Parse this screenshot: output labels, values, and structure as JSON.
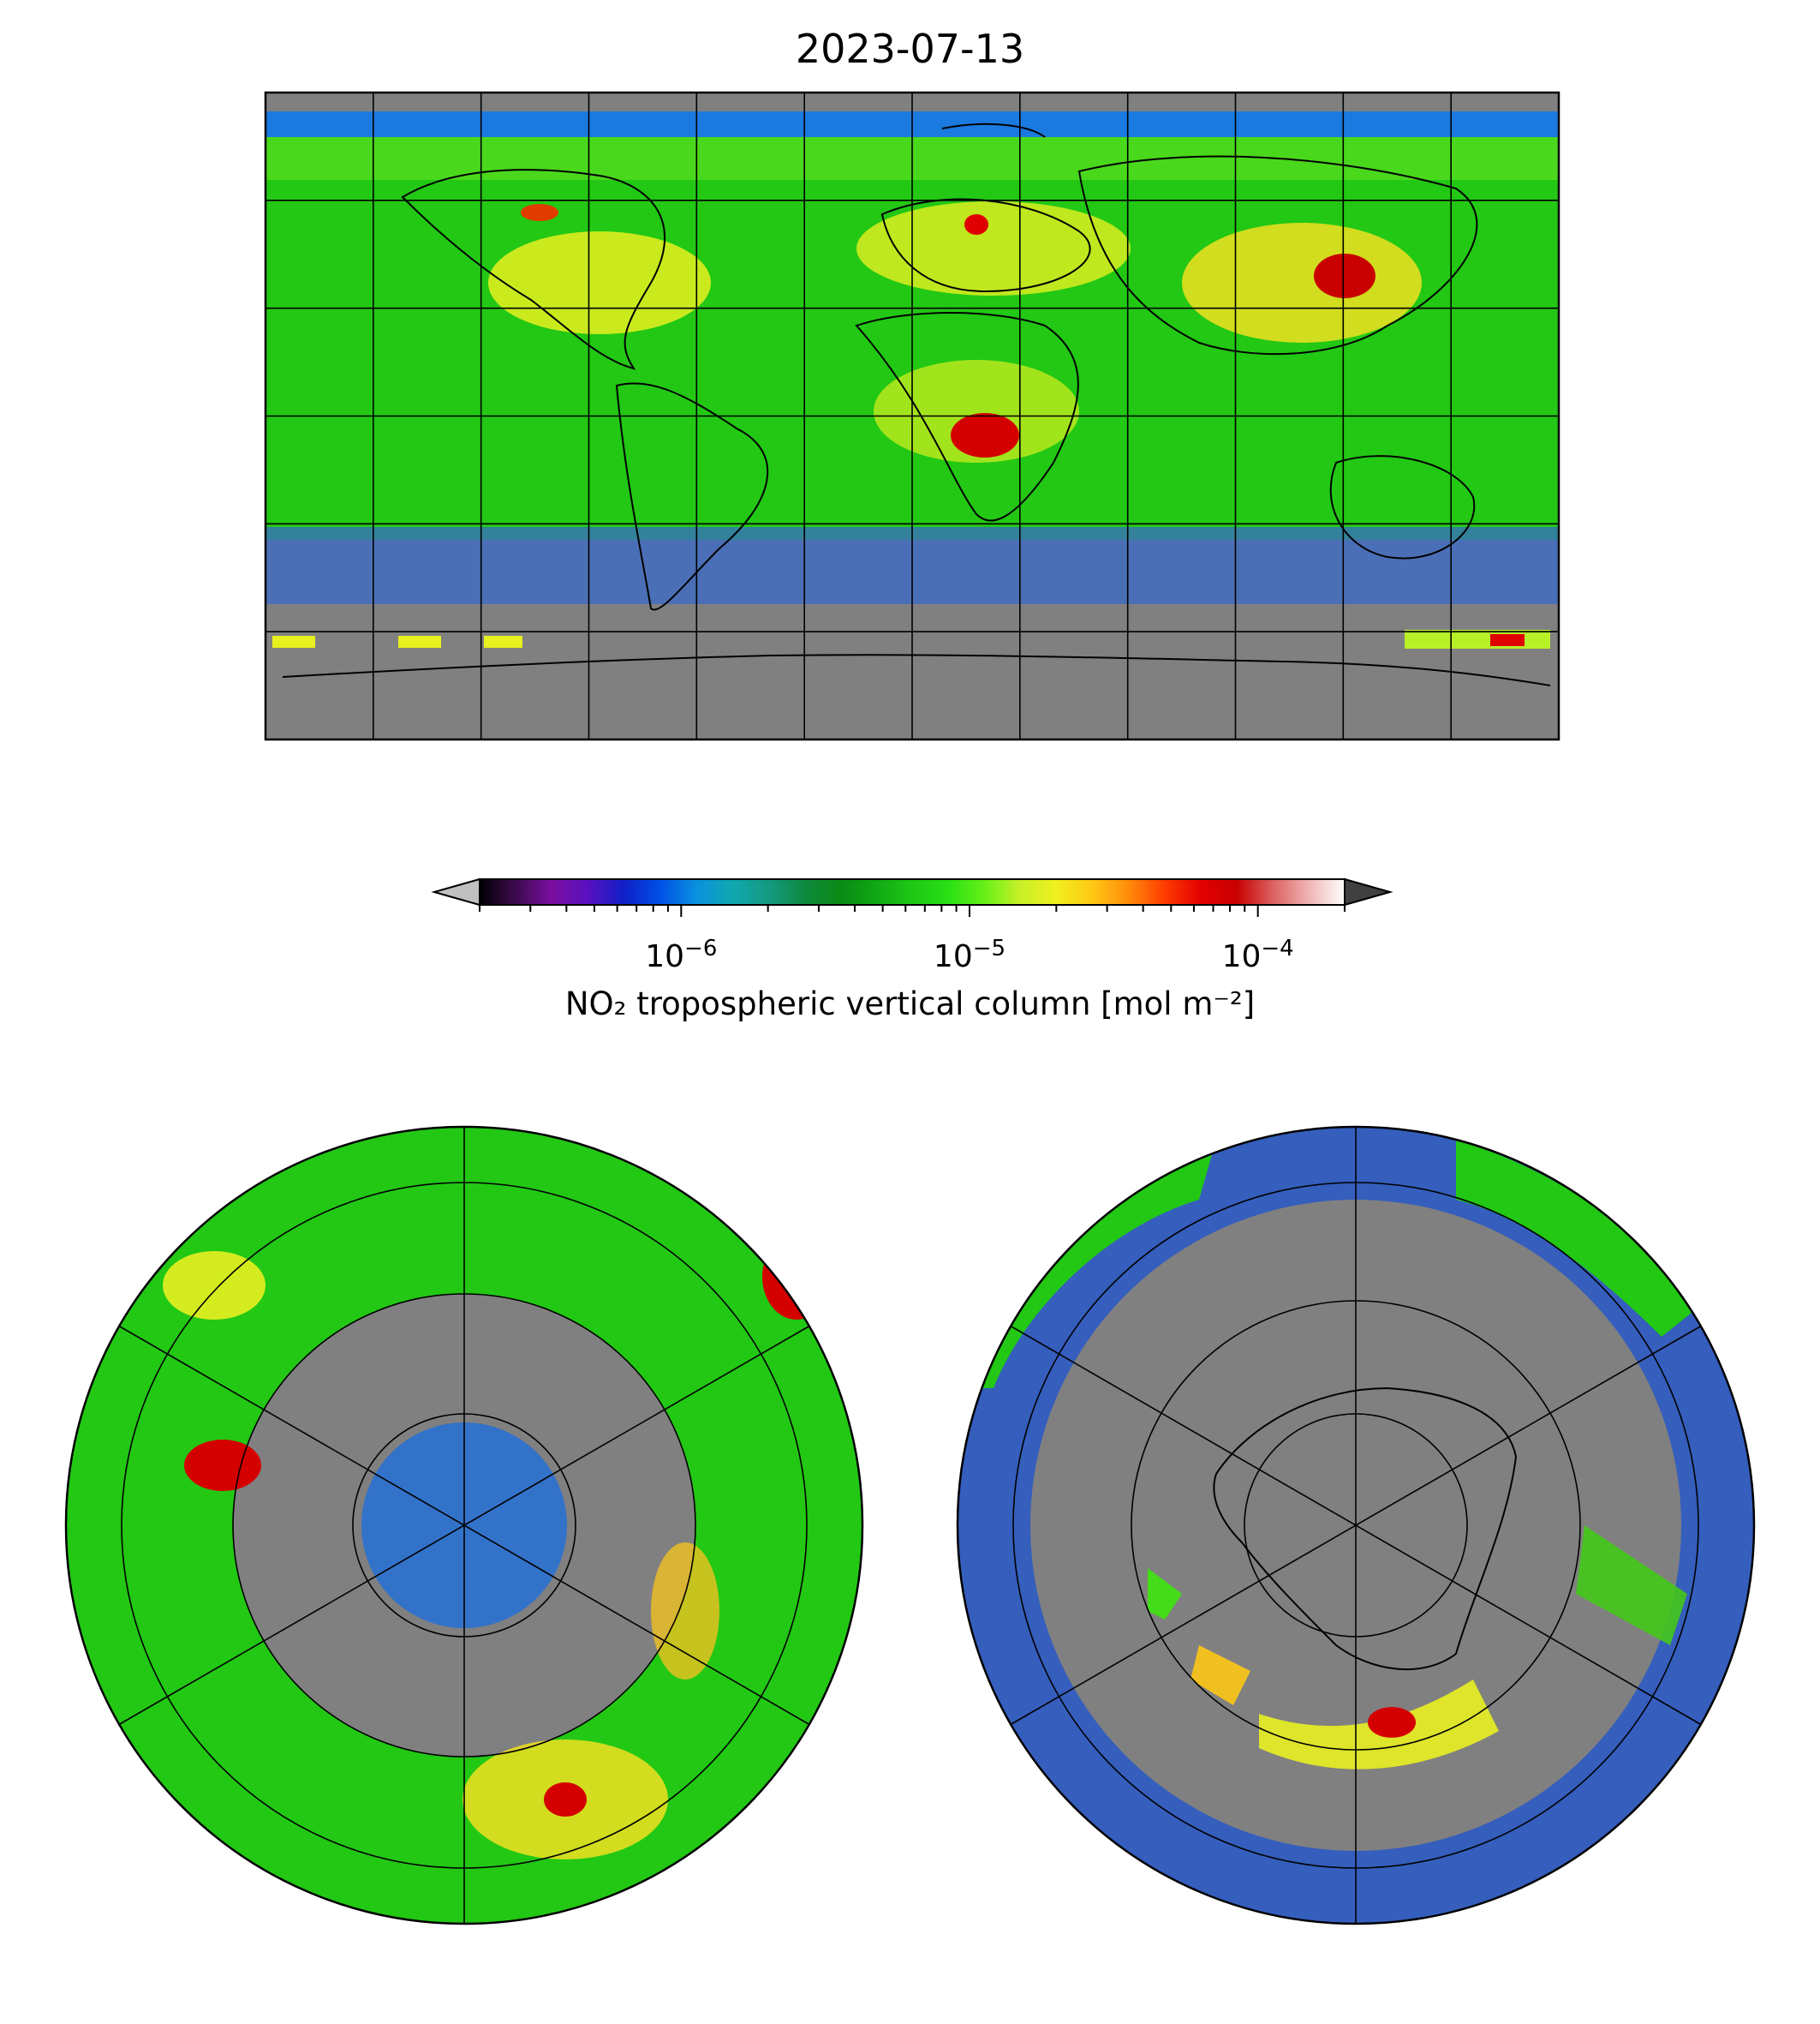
{
  "title": "2023-07-13",
  "colorbar": {
    "label": "NO₂ tropospheric vertical column [mol m⁻²]",
    "scale": "log",
    "range": [
      "2e-7",
      "2e-4"
    ],
    "extend": "both",
    "ticks": [
      {
        "base": "10",
        "exp": "−6",
        "value": "1e-6"
      },
      {
        "base": "10",
        "exp": "−5",
        "value": "1e-5"
      },
      {
        "base": "10",
        "exp": "−4",
        "value": "1e-4"
      }
    ],
    "colors": [
      "#000000",
      "#3d0a4f",
      "#7a0fa0",
      "#5a10c0",
      "#1020c8",
      "#0050e6",
      "#0a90e0",
      "#10a8b0",
      "#149a82",
      "#0f8a40",
      "#0a8a14",
      "#10a814",
      "#1ec814",
      "#28e014",
      "#66f018",
      "#c8f028",
      "#f0f01e",
      "#ffc814",
      "#ff8c0a",
      "#ff3c00",
      "#e40000",
      "#c80000",
      "#dc6060",
      "#f0b4b4",
      "#ffffff"
    ],
    "under_color": "#c0c0c0",
    "over_color": "#404040"
  },
  "maps": [
    {
      "name": "global",
      "projection": "plate-carree",
      "missing_color": "#808080"
    },
    {
      "name": "north-polar",
      "projection": "north-polar-stereographic",
      "missing_color": "#808080"
    },
    {
      "name": "south-polar",
      "projection": "south-polar-stereographic",
      "missing_color": "#808080"
    }
  ]
}
